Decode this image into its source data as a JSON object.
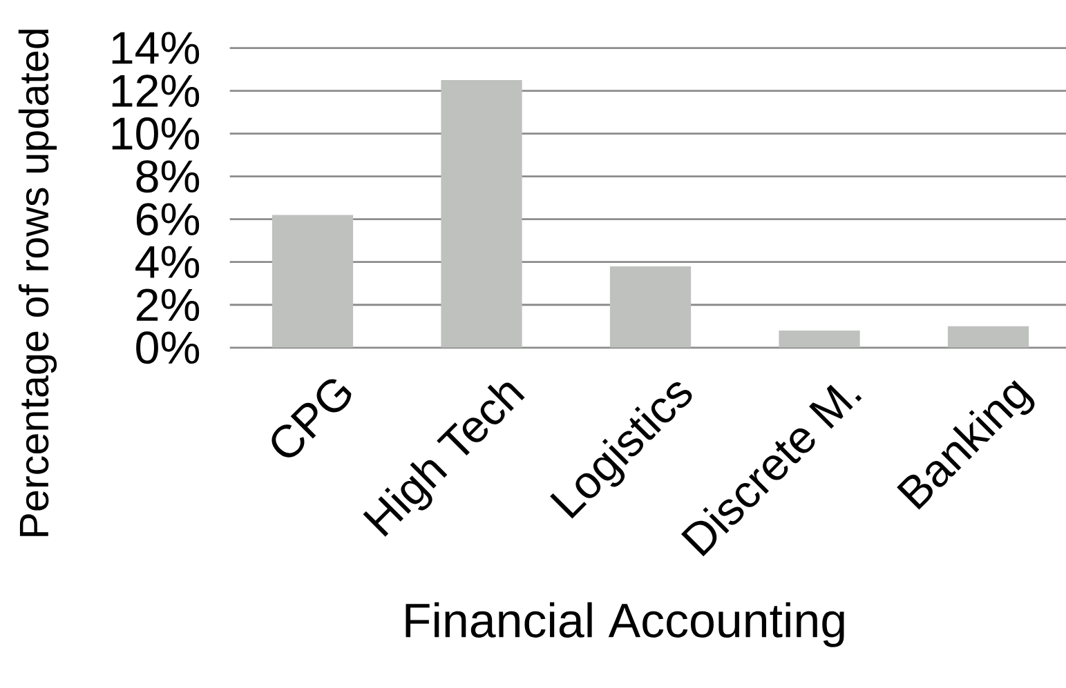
{
  "chart_data": {
    "type": "bar",
    "xlabel": "Financial Accounting",
    "ylabel": "Percentage of rows updated",
    "categories": [
      "CPG",
      "High Tech",
      "Logistics",
      "Discrete M.",
      "Banking"
    ],
    "values": [
      6.2,
      12.5,
      3.8,
      0.8,
      1.0
    ],
    "color": "#bec1be",
    "ylim": [
      0,
      14
    ],
    "yticks": [
      {
        "value": 0,
        "label": "0%"
      },
      {
        "value": 2,
        "label": "2%"
      },
      {
        "value": 4,
        "label": "4%"
      },
      {
        "value": 6,
        "label": "6%"
      },
      {
        "value": 8,
        "label": "8%"
      },
      {
        "value": 10,
        "label": "10%"
      },
      {
        "value": 12,
        "label": "12%"
      },
      {
        "value": 14,
        "label": "14%"
      }
    ],
    "grid": "y"
  }
}
